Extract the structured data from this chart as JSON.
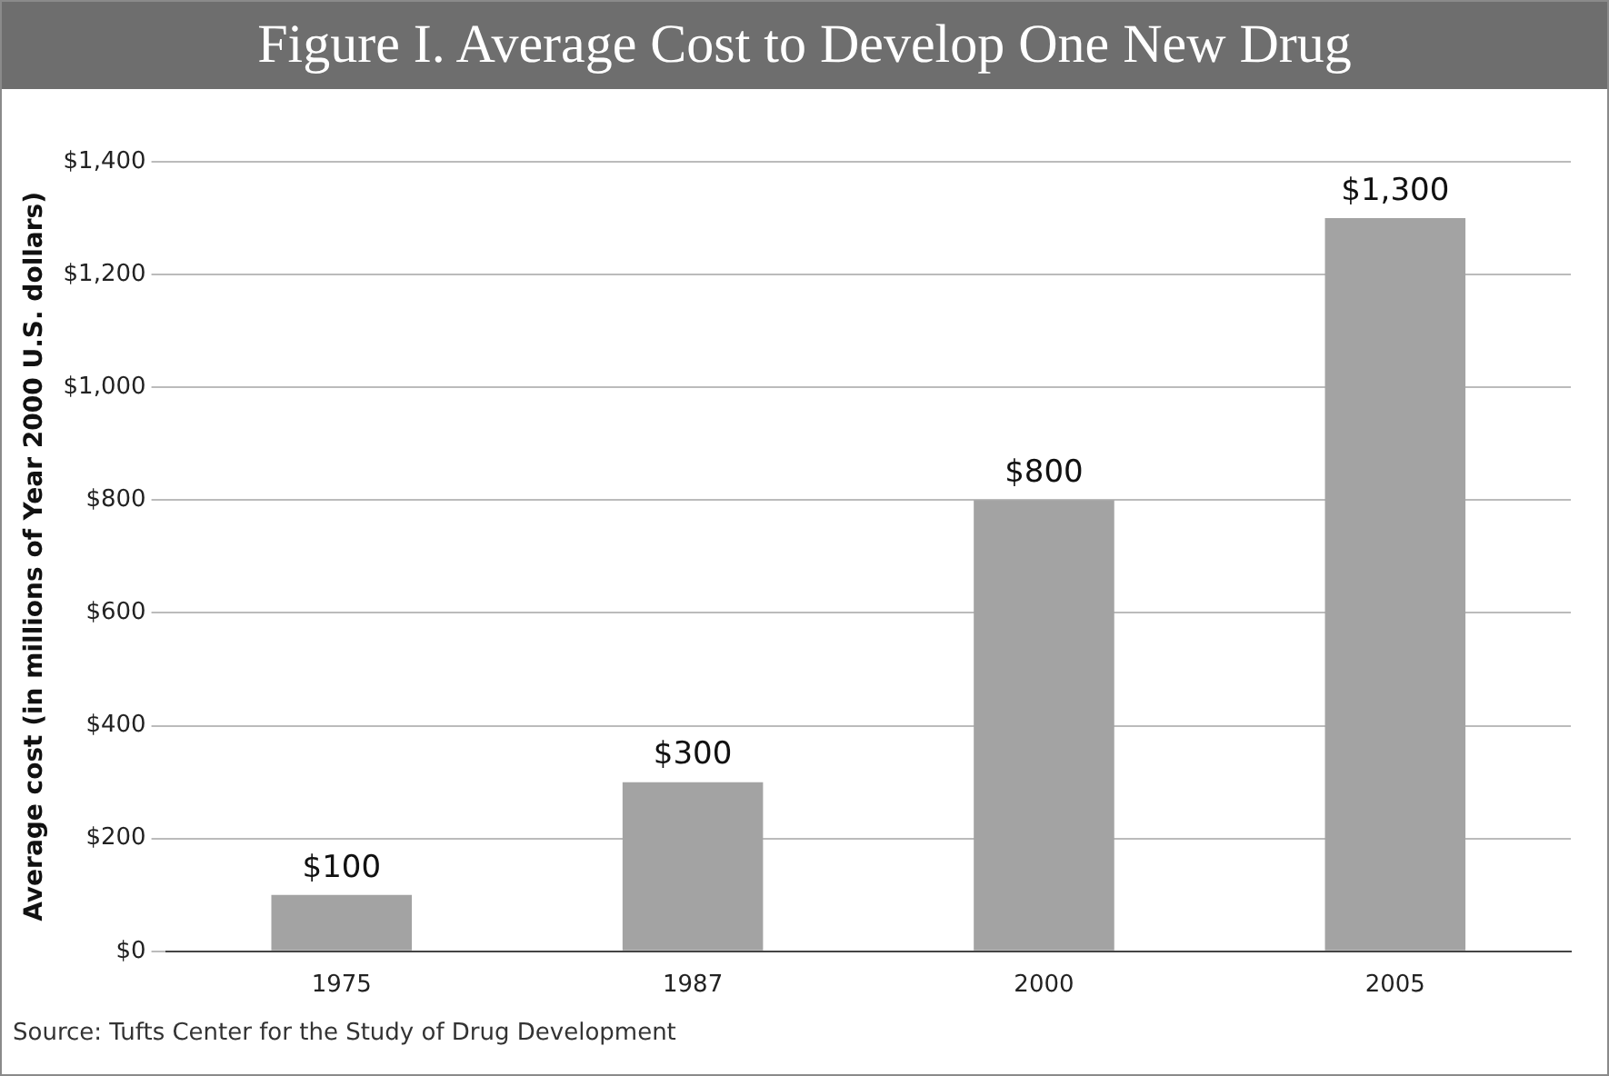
{
  "chart_data": {
    "type": "bar",
    "title": "Figure I. Average Cost to Develop One New Drug",
    "ylabel": "Average cost (in millions of Year 2000 U.S. dollars)",
    "categories": [
      "1975",
      "1987",
      "2000",
      "2005"
    ],
    "values": [
      100,
      300,
      800,
      1300
    ],
    "value_labels": [
      "$100",
      "$300",
      "$800",
      "$1,300"
    ],
    "color": "#a3a3a3",
    "ylim": [
      0,
      1400
    ],
    "yticks": [
      {
        "value": 0,
        "label": "$0"
      },
      {
        "value": 200,
        "label": "$200"
      },
      {
        "value": 400,
        "label": "$400"
      },
      {
        "value": 600,
        "label": "$600"
      },
      {
        "value": 800,
        "label": "$800"
      },
      {
        "value": 1000,
        "label": "$1,000"
      },
      {
        "value": 1200,
        "label": "$1,200"
      },
      {
        "value": 1400,
        "label": "$1,400"
      }
    ],
    "grid": "y",
    "legend": false,
    "annotations": [
      "Source: Tufts Center for the Study of Drug Development"
    ]
  }
}
